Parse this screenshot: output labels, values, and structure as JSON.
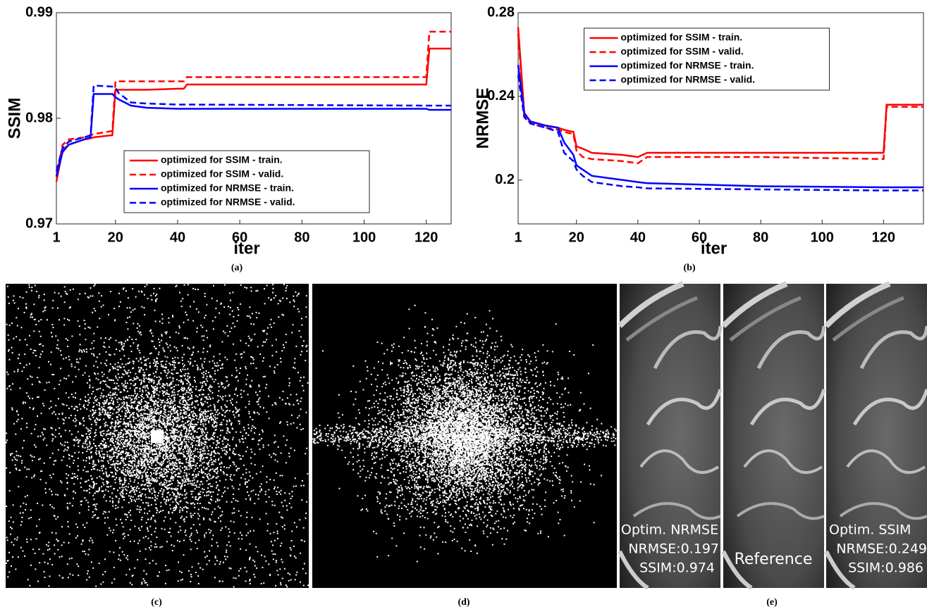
{
  "chart_data": [
    {
      "type": "line",
      "caption": "(a)",
      "y_label": "SSIM",
      "x_label": "iter",
      "x": [
        1,
        3,
        5,
        10,
        12,
        13,
        19,
        20,
        21,
        25,
        30,
        40,
        42,
        43,
        120,
        121,
        128
      ],
      "series": [
        {
          "name": "optimized for SSIM - train.",
          "color": "#ff0000",
          "linestyle": "solid",
          "values": [
            0.974,
            0.977,
            0.9775,
            0.978,
            0.9781,
            0.9782,
            0.9784,
            0.9827,
            0.9827,
            0.9827,
            0.9827,
            0.9828,
            0.9828,
            0.9832,
            0.9832,
            0.9866,
            0.9866
          ]
        },
        {
          "name": "optimized for SSIM - valid.",
          "color": "#ff0000",
          "linestyle": "dashed",
          "values": [
            0.9745,
            0.9775,
            0.978,
            0.9782,
            0.9784,
            0.9785,
            0.9788,
            0.9835,
            0.9835,
            0.9835,
            0.9835,
            0.9835,
            0.9835,
            0.9839,
            0.9839,
            0.9882,
            0.9882
          ]
        },
        {
          "name": "optimized for NRMSE - train.",
          "color": "#0000ff",
          "linestyle": "solid",
          "values": [
            0.9745,
            0.9768,
            0.9775,
            0.978,
            0.9782,
            0.9823,
            0.9823,
            0.982,
            0.9818,
            0.9812,
            0.981,
            0.9809,
            0.9809,
            0.9809,
            0.9809,
            0.9808,
            0.9808
          ]
        },
        {
          "name": "optimized for NRMSE - valid.",
          "color": "#0000ff",
          "linestyle": "dashed",
          "values": [
            0.975,
            0.9772,
            0.9778,
            0.9782,
            0.9784,
            0.9831,
            0.983,
            0.9829,
            0.9824,
            0.9815,
            0.9814,
            0.9813,
            0.9813,
            0.9813,
            0.9812,
            0.9812,
            0.9812
          ]
        }
      ],
      "xlim": [
        1,
        128
      ],
      "xticks": [
        1,
        20,
        40,
        60,
        80,
        100,
        120
      ],
      "ylim": [
        0.97,
        0.99
      ],
      "yticks": [
        0.97,
        0.98,
        0.99
      ],
      "legend": "lower center"
    },
    {
      "type": "line",
      "caption": "(b)",
      "y_label": "NRMSE",
      "x_label": "iter",
      "x": [
        1,
        3,
        5,
        10,
        14,
        16,
        19,
        20,
        22,
        25,
        35,
        40,
        43,
        80,
        120,
        121,
        133
      ],
      "series": [
        {
          "name": "optimized for SSIM - train.",
          "color": "#ff0000",
          "linestyle": "solid",
          "values": [
            0.273,
            0.232,
            0.228,
            0.226,
            0.225,
            0.224,
            0.223,
            0.216,
            0.215,
            0.213,
            0.212,
            0.211,
            0.213,
            0.213,
            0.213,
            0.236,
            0.236
          ]
        },
        {
          "name": "optimized for SSIM - valid.",
          "color": "#ff0000",
          "linestyle": "dashed",
          "values": [
            0.27,
            0.231,
            0.227,
            0.225,
            0.224,
            0.223,
            0.222,
            0.214,
            0.211,
            0.21,
            0.209,
            0.208,
            0.211,
            0.211,
            0.21,
            0.235,
            0.235
          ]
        },
        {
          "name": "optimized for NRMSE - train.",
          "color": "#0000ff",
          "linestyle": "solid",
          "values": [
            0.255,
            0.232,
            0.228,
            0.226,
            0.225,
            0.218,
            0.212,
            0.207,
            0.205,
            0.202,
            0.2,
            0.199,
            0.1985,
            0.197,
            0.1965,
            0.1965,
            0.1965
          ]
        },
        {
          "name": "optimized for NRMSE - valid.",
          "color": "#0000ff",
          "linestyle": "dashed",
          "values": [
            0.25,
            0.23,
            0.227,
            0.225,
            0.223,
            0.213,
            0.209,
            0.205,
            0.202,
            0.199,
            0.197,
            0.1965,
            0.196,
            0.1955,
            0.195,
            0.195,
            0.195
          ]
        }
      ],
      "xlim": [
        1,
        133
      ],
      "xticks": [
        1,
        20,
        40,
        60,
        80,
        100,
        120
      ],
      "ylim": [
        0.179,
        0.28
      ],
      "yticks": [
        0.2,
        0.24,
        0.28
      ],
      "legend": "upper center"
    }
  ],
  "figure": {
    "captions": [
      "(c)",
      "(d)",
      "(e)"
    ],
    "overlays": [
      [
        "Optim. NRMSE",
        "NRMSE:0.197",
        "SSIM:0.974"
      ],
      [
        "Reference"
      ],
      [
        "Optim. SSIM",
        "NRMSE:0.249",
        "SSIM:0.986"
      ]
    ]
  }
}
